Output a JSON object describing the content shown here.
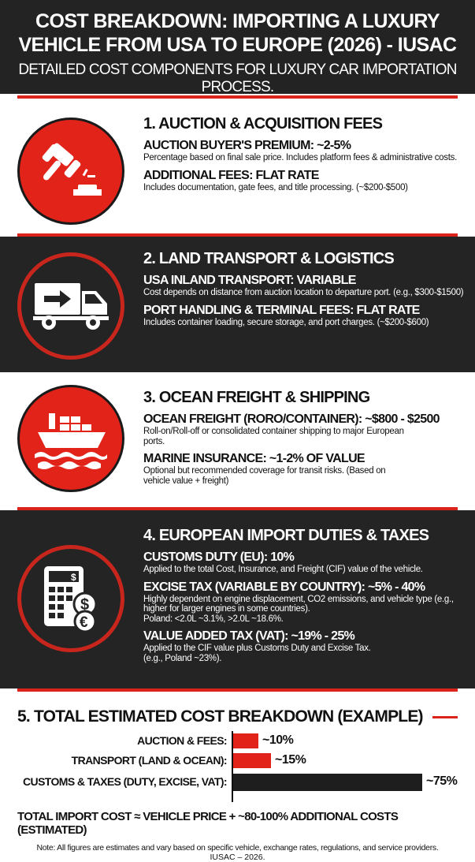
{
  "header": {
    "title_line1": "COST BREAKDOWN: IMPORTING A LUXURY",
    "title_line2": "VEHICLE FROM USA TO EUROPE (2026) - IUSAC",
    "subtitle": "DETAILED COST COMPONENTS FOR LUXURY CAR IMPORTATION PROCESS."
  },
  "colors": {
    "accent": "#d9231b",
    "dark": "#232323",
    "light": "#ffffff"
  },
  "sections": [
    {
      "title": "1. AUCTION & ACQUISITION FEES",
      "icon": "gavel-icon",
      "items": [
        {
          "heading": "AUCTION BUYER'S PREMIUM: ~2-5%",
          "desc": "Percentage based on final sale price. Includes platform fees & administrative costs."
        },
        {
          "heading": "ADDITIONAL FEES: FLAT RATE",
          "desc": "Includes documentation, gate fees, and title processing. (~$200-$500)"
        }
      ]
    },
    {
      "title": "2. LAND TRANSPORT & LOGISTICS",
      "icon": "truck-icon",
      "items": [
        {
          "heading": "USA INLAND TRANSPORT: VARIABLE",
          "desc": "Cost depends on distance from auction location to departure port. (e.g., $300-$1500)"
        },
        {
          "heading": "PORT HANDLING & TERMINAL FEES: FLAT RATE",
          "desc": "Includes container loading, secure storage, and port charges. (~$200-$600)"
        }
      ]
    },
    {
      "title": "3. OCEAN FREIGHT & SHIPPING",
      "icon": "ship-icon",
      "items": [
        {
          "heading": "OCEAN FREIGHT (RORO/CONTAINER): ~$800 - $2500",
          "desc": "Roll-on/Roll-off or consolidated container shipping to major European ports."
        },
        {
          "heading": "MARINE INSURANCE: ~1-2% OF VALUE",
          "desc": "Optional but recommended coverage for transit risks. (Based on vehicle value + freight)"
        }
      ]
    },
    {
      "title": "4. EUROPEAN IMPORT DUTIES & TAXES",
      "icon": "calculator-icon",
      "items": [
        {
          "heading": "CUSTOMS DUTY (EU): 10%",
          "desc": "Applied to the total Cost, Insurance, and Freight (CIF) value of the vehicle."
        },
        {
          "heading": "EXCISE TAX (VARIABLE BY COUNTRY): ~5% - 40%",
          "desc": "Highly dependent on engine displacement, CO2 emissions, and vehicle type (e.g., higher for larger engines in some countries).",
          "desc2": "Poland: <2.0L ~3.1%, >2.0L ~18.6%."
        },
        {
          "heading": "VALUE ADDED TAX (VAT): ~19% - 25%",
          "desc": "Applied to the CIF value plus Customs Duty and Excise Tax.",
          "desc2": "(e.g., Poland ~23%)."
        }
      ]
    }
  ],
  "summary": {
    "title": "5. TOTAL ESTIMATED COST BREAKDOWN (EXAMPLE)",
    "total": "TOTAL IMPORT COST ≈ VEHICLE PRICE + ~80-100% ADDITIONAL COSTS (ESTIMATED)",
    "note": "Note: All figures are estimates and vary based on specific vehicle, exchange rates, regulations, and service providers.",
    "credit": "IUSAC – 2026."
  },
  "chart_data": {
    "type": "bar",
    "orientation": "horizontal",
    "categories": [
      "AUCTION & FEES:",
      "TRANSPORT (LAND & OCEAN):",
      "CUSTOMS & TAXES (DUTY, EXCISE, VAT):"
    ],
    "values": [
      10,
      15,
      75
    ],
    "data_labels": [
      "~10%",
      "~15%",
      "~75%"
    ],
    "colors": [
      "#e2231a",
      "#e2231a",
      "#1e1e1e"
    ],
    "title": "",
    "xlabel": "",
    "ylabel": ""
  }
}
